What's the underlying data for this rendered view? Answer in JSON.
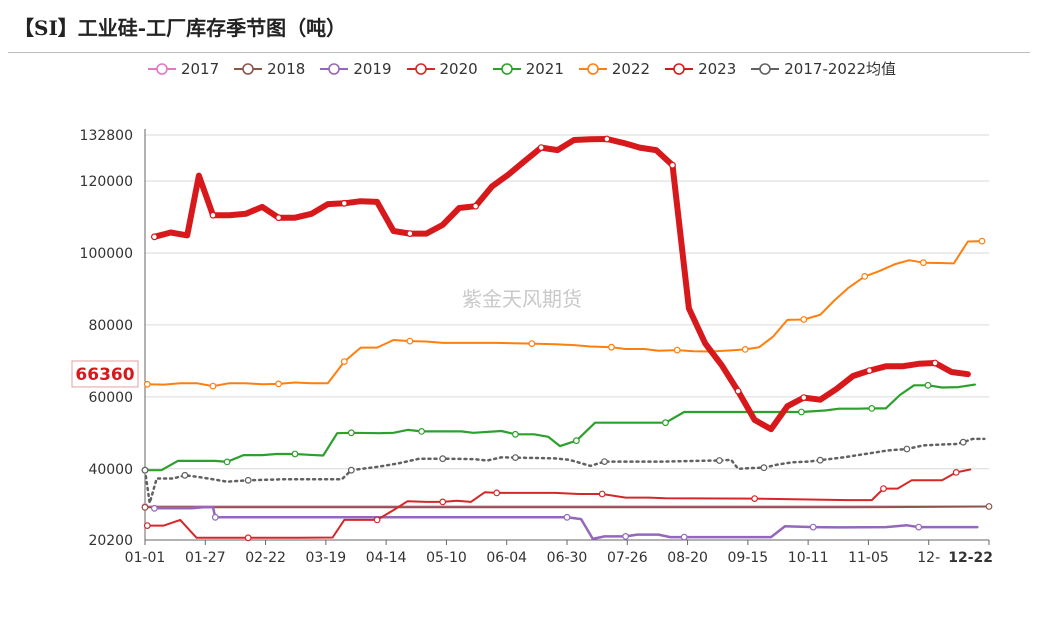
{
  "title": "【SI】工业硅-工厂库存季节图（吨）",
  "watermark": "紫金天风期货",
  "current_value_label": "66360",
  "chart_data": {
    "type": "line",
    "title": "【SI】工业硅-工厂库存季节图（吨）",
    "ylim": [
      20200,
      132800
    ],
    "yticks": [
      20200,
      40000,
      60000,
      80000,
      100000,
      120000,
      132800
    ],
    "xticks": [
      "01-01",
      "01-27",
      "02-22",
      "03-19",
      "04-14",
      "05-10",
      "06-04",
      "06-30",
      "07-26",
      "08-20",
      "09-15",
      "10-11",
      "11-05",
      "12-",
      "12-22"
    ],
    "xticks_highlight": "12-22",
    "series": [
      {
        "name": "2017",
        "color": "#e377c2",
        "width": 2,
        "dash": false,
        "points": [
          [
            0,
            29500
          ],
          [
            50,
            29500
          ],
          [
            360,
            29500
          ]
        ]
      },
      {
        "name": "2018",
        "color": "#8c564b",
        "width": 2,
        "dash": false,
        "points": [
          [
            0,
            29300
          ],
          [
            100,
            29300
          ],
          [
            200,
            29300
          ],
          [
            300,
            29300
          ],
          [
            360,
            29500
          ]
        ]
      },
      {
        "name": "2019",
        "color": "#9467bd",
        "width": 2.5,
        "dash": false,
        "points": [
          [
            4,
            29000
          ],
          [
            20,
            29000
          ],
          [
            25,
            29300
          ],
          [
            29,
            29300
          ],
          [
            30,
            26500
          ],
          [
            55,
            26500
          ],
          [
            100,
            26500
          ],
          [
            150,
            26500
          ],
          [
            180,
            26500
          ],
          [
            186,
            26000
          ],
          [
            191,
            20500
          ],
          [
            196,
            21200
          ],
          [
            205,
            21200
          ],
          [
            210,
            21700
          ],
          [
            219,
            21700
          ],
          [
            224,
            21000
          ],
          [
            230,
            21000
          ],
          [
            260,
            21000
          ],
          [
            267,
            21000
          ],
          [
            273,
            24000
          ],
          [
            285,
            23800
          ],
          [
            296,
            23700
          ],
          [
            316,
            23800
          ],
          [
            325,
            24300
          ],
          [
            330,
            23800
          ],
          [
            355,
            23800
          ]
        ]
      },
      {
        "name": "2020",
        "color": "#d62728",
        "width": 2,
        "dash": false,
        "points": [
          [
            1,
            24200
          ],
          [
            8,
            24200
          ],
          [
            15,
            25800
          ],
          [
            22,
            20800
          ],
          [
            44,
            20800
          ],
          [
            66,
            20800
          ],
          [
            80,
            20900
          ],
          [
            85,
            25800
          ],
          [
            99,
            25800
          ],
          [
            106,
            28500
          ],
          [
            112,
            31000
          ],
          [
            120,
            30800
          ],
          [
            127,
            30800
          ],
          [
            133,
            31100
          ],
          [
            139,
            30800
          ],
          [
            145,
            33500
          ],
          [
            150,
            33300
          ],
          [
            160,
            33300
          ],
          [
            175,
            33300
          ],
          [
            185,
            33000
          ],
          [
            195,
            33000
          ],
          [
            205,
            32000
          ],
          [
            215,
            32000
          ],
          [
            222,
            31800
          ],
          [
            260,
            31700
          ],
          [
            280,
            31500
          ],
          [
            300,
            31300
          ],
          [
            310,
            31300
          ],
          [
            315,
            34500
          ],
          [
            321,
            34500
          ],
          [
            327,
            36800
          ],
          [
            340,
            36800
          ],
          [
            346,
            39000
          ],
          [
            352,
            39800
          ]
        ]
      },
      {
        "name": "2021",
        "color": "#2ca02c",
        "width": 2.2,
        "dash": false,
        "points": [
          [
            0,
            39600
          ],
          [
            7,
            39600
          ],
          [
            14,
            42200
          ],
          [
            30,
            42200
          ],
          [
            35,
            41900
          ],
          [
            42,
            43800
          ],
          [
            50,
            43800
          ],
          [
            56,
            44100
          ],
          [
            64,
            44100
          ],
          [
            70,
            43900
          ],
          [
            76,
            43700
          ],
          [
            82,
            49900
          ],
          [
            88,
            50000
          ],
          [
            100,
            49900
          ],
          [
            106,
            50000
          ],
          [
            112,
            50800
          ],
          [
            118,
            50400
          ],
          [
            135,
            50400
          ],
          [
            140,
            50000
          ],
          [
            152,
            50500
          ],
          [
            158,
            49600
          ],
          [
            166,
            49600
          ],
          [
            172,
            48900
          ],
          [
            177,
            46300
          ],
          [
            184,
            47800
          ],
          [
            192,
            52800
          ],
          [
            200,
            52800
          ],
          [
            212,
            52800
          ],
          [
            222,
            52800
          ],
          [
            230,
            55800
          ],
          [
            240,
            55800
          ],
          [
            260,
            55800
          ],
          [
            280,
            55800
          ],
          [
            290,
            56200
          ],
          [
            296,
            56700
          ],
          [
            304,
            56700
          ],
          [
            310,
            56800
          ],
          [
            316,
            56800
          ],
          [
            322,
            60500
          ],
          [
            328,
            63200
          ],
          [
            334,
            63200
          ],
          [
            340,
            62600
          ],
          [
            347,
            62700
          ],
          [
            354,
            63400
          ]
        ]
      },
      {
        "name": "2022",
        "color": "#ff7f0e",
        "width": 2,
        "dash": false,
        "points": [
          [
            1,
            63500
          ],
          [
            8,
            63400
          ],
          [
            15,
            63800
          ],
          [
            22,
            63800
          ],
          [
            29,
            63000
          ],
          [
            36,
            63800
          ],
          [
            43,
            63800
          ],
          [
            50,
            63500
          ],
          [
            57,
            63600
          ],
          [
            64,
            64000
          ],
          [
            71,
            63800
          ],
          [
            78,
            63800
          ],
          [
            85,
            69800
          ],
          [
            92,
            73700
          ],
          [
            99,
            73700
          ],
          [
            106,
            75800
          ],
          [
            113,
            75500
          ],
          [
            120,
            75400
          ],
          [
            127,
            75000
          ],
          [
            150,
            75000
          ],
          [
            165,
            74800
          ],
          [
            175,
            74600
          ],
          [
            183,
            74400
          ],
          [
            190,
            74000
          ],
          [
            199,
            73800
          ],
          [
            205,
            73300
          ],
          [
            213,
            73300
          ],
          [
            219,
            72800
          ],
          [
            227,
            73000
          ],
          [
            234,
            72700
          ],
          [
            241,
            72600
          ],
          [
            250,
            72900
          ],
          [
            256,
            73200
          ],
          [
            262,
            73800
          ],
          [
            268,
            76800
          ],
          [
            274,
            81400
          ],
          [
            281,
            81500
          ],
          [
            288,
            82800
          ],
          [
            294,
            86800
          ],
          [
            300,
            90300
          ],
          [
            307,
            93500
          ],
          [
            313,
            94900
          ],
          [
            320,
            96900
          ],
          [
            326,
            98000
          ],
          [
            332,
            97300
          ],
          [
            339,
            97200
          ],
          [
            345,
            97100
          ],
          [
            351,
            103200
          ],
          [
            357,
            103300
          ]
        ]
      },
      {
        "name": "2023",
        "color": "#d7191c",
        "width": 6,
        "dash": false,
        "points": [
          [
            4,
            104500
          ],
          [
            11,
            105700
          ],
          [
            18,
            104900
          ],
          [
            23,
            121500
          ],
          [
            29,
            110500
          ],
          [
            36,
            110500
          ],
          [
            43,
            110900
          ],
          [
            50,
            112800
          ],
          [
            57,
            109800
          ],
          [
            64,
            109800
          ],
          [
            71,
            110900
          ],
          [
            78,
            113600
          ],
          [
            85,
            113800
          ],
          [
            92,
            114400
          ],
          [
            99,
            114200
          ],
          [
            106,
            106100
          ],
          [
            113,
            105400
          ],
          [
            120,
            105400
          ],
          [
            127,
            107800
          ],
          [
            134,
            112500
          ],
          [
            141,
            113000
          ],
          [
            148,
            118500
          ],
          [
            155,
            121800
          ],
          [
            162,
            125600
          ],
          [
            169,
            129300
          ],
          [
            176,
            128600
          ],
          [
            183,
            131400
          ],
          [
            190,
            131600
          ],
          [
            197,
            131700
          ],
          [
            204,
            130600
          ],
          [
            211,
            129300
          ],
          [
            218,
            128600
          ],
          [
            225,
            124400
          ],
          [
            232,
            84600
          ],
          [
            239,
            74800
          ],
          [
            246,
            68800
          ],
          [
            253,
            61600
          ],
          [
            260,
            53600
          ],
          [
            267,
            51000
          ],
          [
            274,
            57400
          ],
          [
            281,
            59800
          ],
          [
            288,
            59200
          ],
          [
            295,
            62200
          ],
          [
            302,
            65800
          ],
          [
            309,
            67300
          ],
          [
            316,
            68500
          ],
          [
            323,
            68500
          ],
          [
            330,
            69200
          ],
          [
            337,
            69400
          ],
          [
            344,
            66900
          ],
          [
            351,
            66300
          ]
        ]
      },
      {
        "name": "2017-2022均值",
        "color": "#616161",
        "width": 2.5,
        "dash": true,
        "points": [
          [
            0,
            39600
          ],
          [
            2,
            30500
          ],
          [
            5,
            37300
          ],
          [
            12,
            37300
          ],
          [
            17,
            38200
          ],
          [
            22,
            37800
          ],
          [
            28,
            37200
          ],
          [
            35,
            36400
          ],
          [
            44,
            36800
          ],
          [
            60,
            37100
          ],
          [
            75,
            37100
          ],
          [
            84,
            37100
          ],
          [
            88,
            39600
          ],
          [
            100,
            40600
          ],
          [
            108,
            41500
          ],
          [
            117,
            42800
          ],
          [
            127,
            42800
          ],
          [
            140,
            42700
          ],
          [
            146,
            42300
          ],
          [
            152,
            43200
          ],
          [
            158,
            43100
          ],
          [
            175,
            42900
          ],
          [
            181,
            42500
          ],
          [
            190,
            40800
          ],
          [
            196,
            42000
          ],
          [
            211,
            42000
          ],
          [
            221,
            42000
          ],
          [
            235,
            42200
          ],
          [
            245,
            42300
          ],
          [
            250,
            42500
          ],
          [
            253,
            40000
          ],
          [
            258,
            40200
          ],
          [
            264,
            40300
          ],
          [
            270,
            41200
          ],
          [
            276,
            41800
          ],
          [
            283,
            42000
          ],
          [
            288,
            42400
          ],
          [
            298,
            43200
          ],
          [
            305,
            43900
          ],
          [
            317,
            45100
          ],
          [
            325,
            45500
          ],
          [
            332,
            46500
          ],
          [
            342,
            46800
          ],
          [
            346,
            46900
          ],
          [
            349,
            47400
          ],
          [
            353,
            48300
          ],
          [
            358,
            48300
          ]
        ]
      }
    ]
  }
}
